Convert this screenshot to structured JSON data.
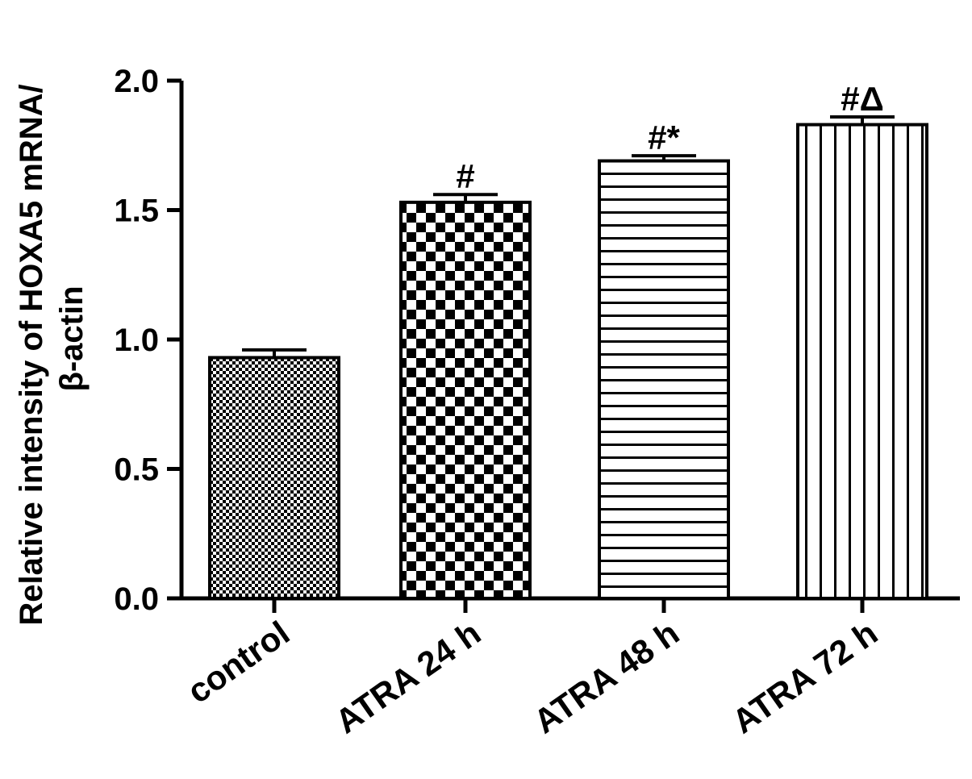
{
  "chart_data": {
    "type": "bar",
    "title": "",
    "xlabel": "",
    "ylabel_lines": [
      "Relative intensity of HOXA5 mRNA/",
      "β-actin"
    ],
    "ylim": [
      0,
      2.0
    ],
    "yticks": [
      "0.0",
      "0.5",
      "1.0",
      "1.5",
      "2.0"
    ],
    "categories": [
      "control",
      "ATRA 24 h",
      "ATRA 48 h",
      "ATRA 72 h"
    ],
    "values": [
      0.93,
      1.53,
      1.69,
      1.83
    ],
    "errors": [
      0.03,
      0.03,
      0.02,
      0.03
    ],
    "annotations": [
      "",
      "#",
      "#*",
      "#Δ"
    ],
    "patterns": [
      "fine-checker",
      "coarse-checker",
      "horizontal-stripes",
      "vertical-stripes"
    ],
    "grid": false,
    "legend": "none"
  }
}
